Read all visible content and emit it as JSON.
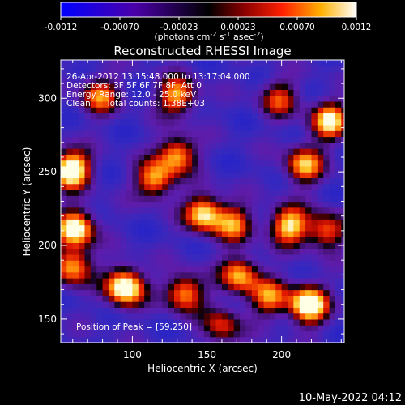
{
  "colorbar": {
    "ticks": [
      "-0.0012",
      "-0.00070",
      "-0.00023",
      "0.00023",
      "0.00070",
      "0.0012"
    ],
    "units_main": "(photons cm",
    "units_sup1": "-2",
    "units_mid": " s",
    "units_sup2": "-1",
    "units_end": " asec",
    "units_sup3": "-2",
    "units_close": ")"
  },
  "annotations": {
    "time": "26-Apr-2012 13:15:48.000 to 13:17:04.000",
    "detectors": "Detectors: 3F 5F 6F 7F 8F, Att 0",
    "energy": "Energy Range: 12.0 - 25.0 keV",
    "method": "Clean",
    "counts": "Total counts: 1.38E+03",
    "peak": "Position of Peak = [59,250]"
  },
  "footer": {
    "date": "10-May-2022 04:12"
  },
  "chart_data": {
    "type": "heatmap",
    "title": "Reconstructed RHESSI Image",
    "xlabel": "Heliocentric X (arcsec)",
    "ylabel": "Heliocentric Y (arcsec)",
    "xlim": [
      52,
      242
    ],
    "ylim": [
      134,
      326
    ],
    "xticks": [
      100,
      150,
      200
    ],
    "yticks": [
      150,
      200,
      250,
      300
    ],
    "colorbar_range": [
      -0.0012,
      0.0012
    ],
    "peak": [
      59,
      250
    ],
    "bright_sources": [
      {
        "x": 59,
        "y": 252,
        "v": 1.0
      },
      {
        "x": 62,
        "y": 212,
        "v": 0.9
      },
      {
        "x": 60,
        "y": 186,
        "v": 0.7
      },
      {
        "x": 95,
        "y": 172,
        "v": 1.0
      },
      {
        "x": 78,
        "y": 302,
        "v": 0.6
      },
      {
        "x": 130,
        "y": 302,
        "v": 0.7
      },
      {
        "x": 130,
        "y": 262,
        "v": 0.7
      },
      {
        "x": 115,
        "y": 245,
        "v": 0.7
      },
      {
        "x": 148,
        "y": 222,
        "v": 0.8
      },
      {
        "x": 168,
        "y": 215,
        "v": 0.6
      },
      {
        "x": 135,
        "y": 168,
        "v": 0.7
      },
      {
        "x": 172,
        "y": 180,
        "v": 0.7
      },
      {
        "x": 205,
        "y": 214,
        "v": 0.8
      },
      {
        "x": 218,
        "y": 160,
        "v": 1.0
      },
      {
        "x": 232,
        "y": 285,
        "v": 0.8
      },
      {
        "x": 215,
        "y": 255,
        "v": 0.7
      },
      {
        "x": 192,
        "y": 165,
        "v": 0.6
      },
      {
        "x": 230,
        "y": 210,
        "v": 0.6
      },
      {
        "x": 198,
        "y": 300,
        "v": 0.5
      },
      {
        "x": 160,
        "y": 145,
        "v": 0.5
      }
    ]
  }
}
